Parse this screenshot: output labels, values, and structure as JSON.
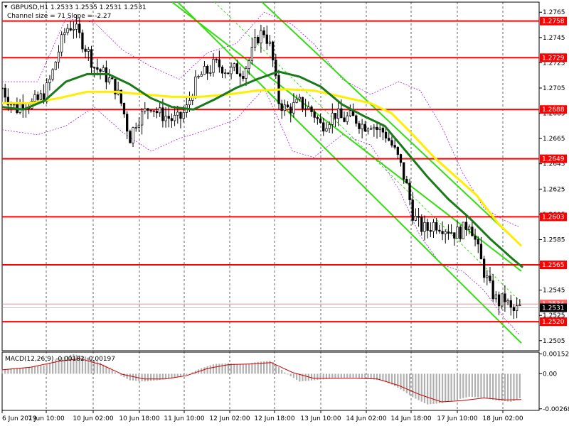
{
  "header": {
    "symbol_line": "GBPUSD,H1  1.2533 1.2535 1.2531 1.2531",
    "channel_line": "Channel size = 71 Slope = -2.27"
  },
  "colors": {
    "candle_bull": "#000000",
    "candle_bear": "#000000",
    "level_line": "#ff0000",
    "ma_fast": "#1a7a1a",
    "ma_slow": "#ffee00",
    "channel": "#33dd11",
    "bollinger": "#a020f0",
    "macd_hist": "#b0b0b0",
    "macd_signal": "#cc0000"
  },
  "chart_data": [
    {
      "type": "candlestick",
      "price_axis": {
        "ticks": [
          "1.2765",
          "1.2745",
          "1.2725",
          "1.2705",
          "1.2685",
          "1.2665",
          "1.2645",
          "1.2625",
          "1.2605",
          "1.2585",
          "1.2565",
          "1.2545",
          "1.2525",
          "1.2505"
        ],
        "range": [
          1.2497,
          1.2773
        ]
      },
      "time_axis": {
        "labels": [
          "6 Jun 2019",
          "7 Jun 10:00",
          "10 Jun 02:00",
          "10 Jun 18:00",
          "11 Jun 10:00",
          "12 Jun 02:00",
          "12 Jun 18:00",
          "13 Jun 10:00",
          "14 Jun 02:00",
          "14 Jun 18:00",
          "17 Jun 10:00",
          "18 Jun 02:00"
        ]
      },
      "levels": [
        {
          "label": "1.2758",
          "value": 1.2758
        },
        {
          "label": "1.2729",
          "value": 1.2729
        },
        {
          "label": "1.2688",
          "value": 1.2688
        },
        {
          "label": "1.2649",
          "value": 1.2649
        },
        {
          "label": "1.2603",
          "value": 1.2603
        },
        {
          "label": "1.2565",
          "value": 1.2565
        },
        {
          "label": "1.2520",
          "value": 1.252
        }
      ],
      "current_price": {
        "label": "1.2531",
        "value": 1.2531
      },
      "ask_tag": {
        "label": "1.2534",
        "value": 1.2534
      },
      "close_path": [
        [
          0,
          1.2705
        ],
        [
          10,
          1.2695
        ],
        [
          20,
          1.2688
        ],
        [
          30,
          1.2695
        ],
        [
          40,
          1.2692
        ],
        [
          50,
          1.2695
        ],
        [
          60,
          1.27
        ],
        [
          70,
          1.2715
        ],
        [
          80,
          1.2735
        ],
        [
          90,
          1.2752
        ],
        [
          100,
          1.2755
        ],
        [
          110,
          1.2745
        ],
        [
          120,
          1.2735
        ],
        [
          130,
          1.2722
        ],
        [
          140,
          1.2718
        ],
        [
          150,
          1.2712
        ],
        [
          160,
          1.2705
        ],
        [
          170,
          1.269
        ],
        [
          180,
          1.2665
        ],
        [
          190,
          1.268
        ],
        [
          200,
          1.2685
        ],
        [
          210,
          1.2692
        ],
        [
          220,
          1.2685
        ],
        [
          230,
          1.2683
        ],
        [
          240,
          1.268
        ],
        [
          250,
          1.268
        ],
        [
          260,
          1.2688
        ],
        [
          270,
          1.2705
        ],
        [
          280,
          1.2715
        ],
        [
          290,
          1.2718
        ],
        [
          300,
          1.2724
        ],
        [
          310,
          1.2722
        ],
        [
          320,
          1.2718
        ],
        [
          330,
          1.272
        ],
        [
          340,
          1.2718
        ],
        [
          350,
          1.2728
        ],
        [
          360,
          1.2745
        ],
        [
          370,
          1.275
        ],
        [
          380,
          1.2735
        ],
        [
          390,
          1.2695
        ],
        [
          400,
          1.2688
        ],
        [
          410,
          1.269
        ],
        [
          420,
          1.2693
        ],
        [
          430,
          1.269
        ],
        [
          440,
          1.2685
        ],
        [
          450,
          1.2675
        ],
        [
          460,
          1.268
        ],
        [
          470,
          1.2685
        ],
        [
          480,
          1.268
        ],
        [
          490,
          1.2682
        ],
        [
          500,
          1.268
        ],
        [
          510,
          1.2675
        ],
        [
          520,
          1.2678
        ],
        [
          530,
          1.2672
        ],
        [
          540,
          1.267
        ],
        [
          550,
          1.266
        ],
        [
          560,
          1.2648
        ],
        [
          570,
          1.263
        ],
        [
          580,
          1.2605
        ],
        [
          590,
          1.2595
        ],
        [
          600,
          1.2593
        ],
        [
          610,
          1.2598
        ],
        [
          620,
          1.2596
        ],
        [
          630,
          1.2593
        ],
        [
          640,
          1.259
        ],
        [
          650,
          1.2592
        ],
        [
          660,
          1.26
        ],
        [
          670,
          1.258
        ],
        [
          680,
          1.256
        ],
        [
          690,
          1.2545
        ],
        [
          700,
          1.2535
        ],
        [
          710,
          1.2538
        ],
        [
          720,
          1.2527
        ],
        [
          730,
          1.2531
        ]
      ],
      "fast_ma": [
        [
          0,
          1.269
        ],
        [
          30,
          1.2688
        ],
        [
          60,
          1.2695
        ],
        [
          90,
          1.271
        ],
        [
          120,
          1.2716
        ],
        [
          150,
          1.2716
        ],
        [
          180,
          1.2708
        ],
        [
          210,
          1.2697
        ],
        [
          240,
          1.269
        ],
        [
          270,
          1.2688
        ],
        [
          300,
          1.2696
        ],
        [
          330,
          1.2705
        ],
        [
          360,
          1.2712
        ],
        [
          390,
          1.2718
        ],
        [
          420,
          1.2714
        ],
        [
          450,
          1.2706
        ],
        [
          480,
          1.2692
        ],
        [
          510,
          1.2683
        ],
        [
          540,
          1.2675
        ],
        [
          570,
          1.2655
        ],
        [
          600,
          1.2635
        ],
        [
          630,
          1.2617
        ],
        [
          660,
          1.2602
        ],
        [
          690,
          1.2585
        ],
        [
          720,
          1.257
        ],
        [
          735,
          1.2563
        ]
      ],
      "slow_ma": [
        [
          0,
          1.2693
        ],
        [
          40,
          1.2693
        ],
        [
          80,
          1.2697
        ],
        [
          120,
          1.2702
        ],
        [
          160,
          1.2702
        ],
        [
          200,
          1.27
        ],
        [
          240,
          1.2698
        ],
        [
          280,
          1.2698
        ],
        [
          320,
          1.27
        ],
        [
          360,
          1.2703
        ],
        [
          400,
          1.2704
        ],
        [
          440,
          1.2703
        ],
        [
          480,
          1.2698
        ],
        [
          520,
          1.2693
        ],
        [
          550,
          1.2685
        ],
        [
          580,
          1.2668
        ],
        [
          610,
          1.265
        ],
        [
          640,
          1.2635
        ],
        [
          670,
          1.262
        ],
        [
          700,
          1.2598
        ],
        [
          733,
          1.258
        ]
      ],
      "bollinger_upper": [
        [
          0,
          1.271
        ],
        [
          50,
          1.271
        ],
        [
          90,
          1.276
        ],
        [
          130,
          1.2757
        ],
        [
          170,
          1.2735
        ],
        [
          210,
          1.2722
        ],
        [
          250,
          1.2712
        ],
        [
          290,
          1.2733
        ],
        [
          330,
          1.274
        ],
        [
          370,
          1.2765
        ],
        [
          410,
          1.2755
        ],
        [
          440,
          1.274
        ],
        [
          480,
          1.2712
        ],
        [
          520,
          1.27
        ],
        [
          560,
          1.271
        ],
        [
          590,
          1.2703
        ],
        [
          620,
          1.2675
        ],
        [
          650,
          1.2638
        ],
        [
          680,
          1.261
        ],
        [
          710,
          1.26
        ],
        [
          730,
          1.2595
        ]
      ],
      "bollinger_lower": [
        [
          0,
          1.2672
        ],
        [
          50,
          1.2668
        ],
        [
          90,
          1.2675
        ],
        [
          130,
          1.269
        ],
        [
          170,
          1.267
        ],
        [
          210,
          1.2655
        ],
        [
          250,
          1.2665
        ],
        [
          290,
          1.2672
        ],
        [
          330,
          1.268
        ],
        [
          370,
          1.2705
        ],
        [
          410,
          1.2655
        ],
        [
          440,
          1.265
        ],
        [
          480,
          1.2668
        ],
        [
          520,
          1.266
        ],
        [
          560,
          1.2625
        ],
        [
          590,
          1.2588
        ],
        [
          620,
          1.2565
        ],
        [
          650,
          1.256
        ],
        [
          680,
          1.2545
        ],
        [
          710,
          1.2522
        ],
        [
          730,
          1.251
        ]
      ],
      "channel_lines": [
        {
          "x1": 240,
          "y1": 1.2773,
          "x2": 733,
          "y2": 1.256
        },
        {
          "x1": 367,
          "y1": 1.2773,
          "x2": 733,
          "y2": 1.258
        },
        {
          "x1": 248,
          "y1": 1.2773,
          "x2": 733,
          "y2": 1.2503
        }
      ],
      "channel_mid": {
        "x1": 300,
        "y1": 1.2773,
        "x2": 733,
        "y2": 1.2535
      }
    },
    {
      "type": "macd",
      "title": "MACD(12,26,9) -0.00182 -0.00197",
      "ticks": [
        "0.00152",
        "0.00",
        "-0.00268"
      ],
      "range": [
        -0.0028,
        0.00165
      ],
      "histogram": [
        [
          0,
          0.00035
        ],
        [
          30,
          0.00045
        ],
        [
          60,
          0.00065
        ],
        [
          80,
          0.0012
        ],
        [
          100,
          0.0015
        ],
        [
          120,
          0.0013
        ],
        [
          140,
          0.0008
        ],
        [
          160,
          0.0001
        ],
        [
          180,
          -0.0005
        ],
        [
          200,
          -0.0006
        ],
        [
          220,
          -0.0005
        ],
        [
          240,
          -0.0003
        ],
        [
          260,
          -0.0001
        ],
        [
          280,
          0.0004
        ],
        [
          300,
          0.00075
        ],
        [
          320,
          0.0008
        ],
        [
          340,
          0.0007
        ],
        [
          360,
          0.0009
        ],
        [
          380,
          0.001
        ],
        [
          400,
          5e-05
        ],
        [
          420,
          -0.0006
        ],
        [
          440,
          -0.0005
        ],
        [
          460,
          -0.0004
        ],
        [
          480,
          -0.0003
        ],
        [
          500,
          -0.0003
        ],
        [
          520,
          -0.0004
        ],
        [
          540,
          -0.00055
        ],
        [
          560,
          -0.0011
        ],
        [
          580,
          -0.0018
        ],
        [
          600,
          -0.00235
        ],
        [
          620,
          -0.00225
        ],
        [
          640,
          -0.002
        ],
        [
          660,
          -0.00175
        ],
        [
          680,
          -0.00185
        ],
        [
          700,
          -0.00205
        ],
        [
          720,
          -0.00215
        ],
        [
          733,
          -0.00182
        ]
      ],
      "signal": [
        [
          0,
          0.0003
        ],
        [
          40,
          0.0005
        ],
        [
          80,
          0.00095
        ],
        [
          110,
          0.00115
        ],
        [
          140,
          0.0007
        ],
        [
          170,
          -5e-05
        ],
        [
          200,
          -0.0004
        ],
        [
          230,
          -0.0004
        ],
        [
          260,
          -0.00015
        ],
        [
          290,
          0.0004
        ],
        [
          320,
          0.0007
        ],
        [
          350,
          0.00075
        ],
        [
          380,
          0.00085
        ],
        [
          410,
          0.0001
        ],
        [
          440,
          -0.00035
        ],
        [
          470,
          -0.00035
        ],
        [
          500,
          -0.00035
        ],
        [
          530,
          -0.0004
        ],
        [
          560,
          -0.0009
        ],
        [
          590,
          -0.0016
        ],
        [
          620,
          -0.00215
        ],
        [
          650,
          -0.00205
        ],
        [
          680,
          -0.00185
        ],
        [
          710,
          -0.002
        ],
        [
          733,
          -0.00197
        ]
      ]
    }
  ]
}
